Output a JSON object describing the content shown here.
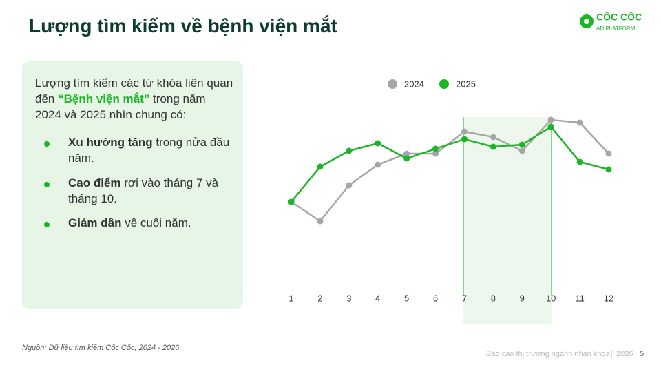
{
  "header": {
    "title": "Lượng tìm kiếm về bệnh viện mắt",
    "logo_name": "CỐC CỐC",
    "logo_sub": "AD PLATFORM"
  },
  "panel": {
    "intro": [
      "Lượng tìm kiếm các từ khóa liên quan đến ",
      "“Bệnh viện mắt”",
      " trong năm 2024 và 2025 nhìn chung có:"
    ],
    "bullets": [
      {
        "bold": "Xu hướng tăng",
        "text": " trong nửa đầu năm."
      },
      {
        "bold": "Cao điểm",
        "text": " rơi vào tháng 7 và tháng 10."
      },
      {
        "bold": "Giảm dần",
        "text": " về cuối năm."
      }
    ]
  },
  "chart_data": {
    "type": "line",
    "categories": [
      "1",
      "2",
      "3",
      "4",
      "5",
      "6",
      "7",
      "8",
      "9",
      "10",
      "11",
      "12"
    ],
    "series": [
      {
        "name": "2024",
        "color": "#a6a6a6",
        "values": [
          47,
          19,
          71,
          101,
          117,
          117,
          149,
          141,
          121,
          166,
          162,
          117
        ]
      },
      {
        "name": "2025",
        "color": "#1db528",
        "values": [
          47,
          98,
          121,
          132,
          110,
          124,
          138,
          127,
          130,
          156,
          105,
          94
        ]
      }
    ]
  },
  "footer": {
    "source": "Nguồn: Dữ liệu tìm kiếm Cốc Cốc, 2024 - 2026",
    "report": "Báo cáo thị trường ngành nhãn khoa",
    "year": "2026",
    "page": "5"
  }
}
